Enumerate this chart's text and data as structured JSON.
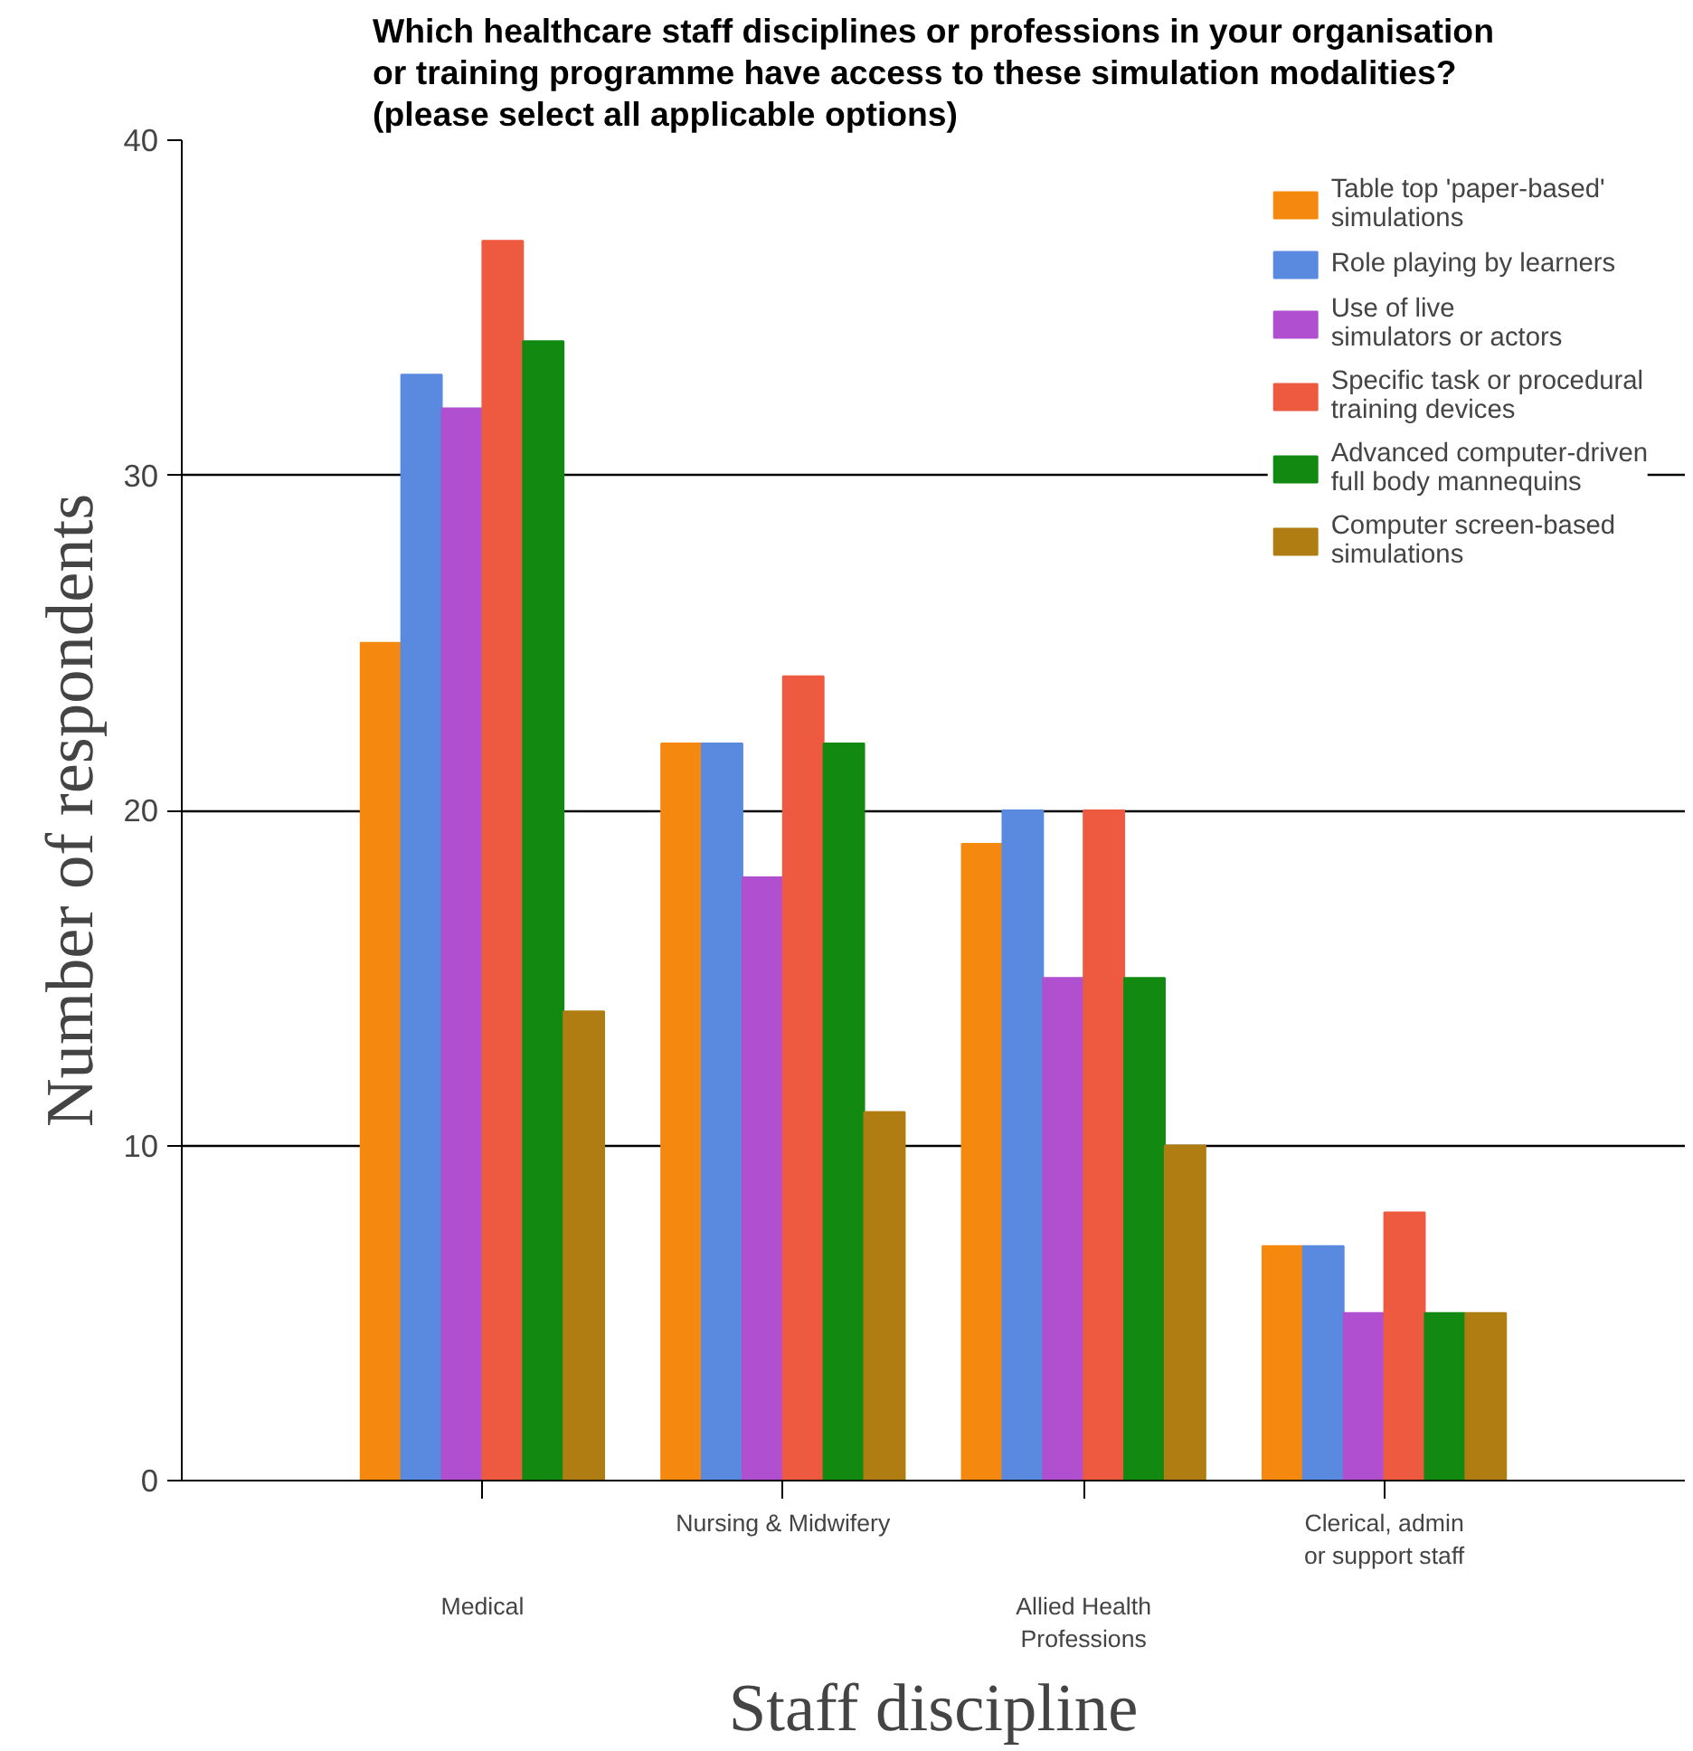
{
  "chart_data": {
    "type": "bar",
    "title": "Which healthcare staff disciplines or professions in your organisation\nor training programme have access to these simulation modalities?\n(please select all applicable options)",
    "xlabel": "Staff discipline",
    "ylabel": "Number of respondents",
    "categories": [
      "Medical",
      "Nursing & Midwifery",
      "Allied Health\nProfessions",
      "Clerical, admin\nor support staff"
    ],
    "series": [
      {
        "name": "Table top 'paper-based'\nsimulations",
        "color": "#f5890f",
        "values": [
          25,
          22,
          19,
          7
        ]
      },
      {
        "name": "Role playing by learners",
        "color": "#5a8ae0",
        "values": [
          33,
          22,
          20,
          7
        ]
      },
      {
        "name": "Use of live\nsimulators or actors",
        "color": "#b04fcf",
        "values": [
          32,
          18,
          15,
          5
        ]
      },
      {
        "name": "Specific task or procedural\ntraining devices",
        "color": "#ee5a3f",
        "values": [
          37,
          24,
          20,
          8
        ]
      },
      {
        "name": "Advanced computer-driven\nfull body mannequins",
        "color": "#128a12",
        "values": [
          34,
          22,
          15,
          5
        ]
      },
      {
        "name": "Computer screen-based\nsimulations",
        "color": "#b07d12",
        "values": [
          14,
          11,
          10,
          5
        ]
      }
    ],
    "ylim": [
      0,
      40
    ],
    "yticks": [
      0,
      10,
      20,
      30,
      40
    ],
    "grid": "y",
    "legend": "top right"
  }
}
